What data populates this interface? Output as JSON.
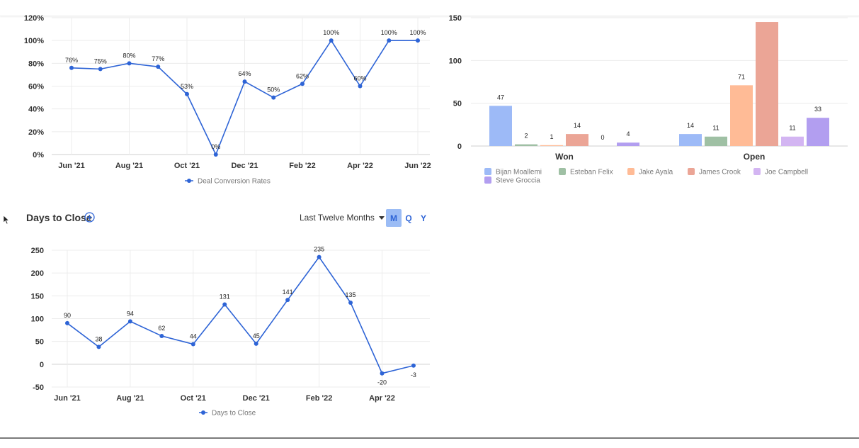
{
  "conversion_chart": {
    "legend": "Deal Conversion Rates",
    "color": "#2e64d6"
  },
  "days_section": {
    "title": "Days to Close",
    "range_label": "Last Twelve Months",
    "periods": [
      "M",
      "Q",
      "Y"
    ],
    "active_period": "M"
  },
  "days_chart": {
    "legend": "Days to Close",
    "color": "#2e64d6"
  },
  "chart_data": [
    {
      "type": "line",
      "ylim": [
        0,
        120
      ],
      "y_ticks": [
        "0%",
        "20%",
        "40%",
        "60%",
        "80%",
        "100%",
        "120%"
      ],
      "x_tick_labels": [
        "Jun '21",
        "Aug '21",
        "Oct '21",
        "Dec '21",
        "Feb '22",
        "Apr '22",
        "Jun '22"
      ],
      "x": [
        "Jun '21",
        "Jul '21",
        "Aug '21",
        "Sep '21",
        "Oct '21",
        "Nov '21",
        "Dec '21",
        "Jan '22",
        "Feb '22",
        "Mar '22",
        "Apr '22",
        "May '22",
        "Jun '22"
      ],
      "values": [
        76,
        75,
        80,
        77,
        53,
        0,
        64,
        50,
        62,
        100,
        60,
        100,
        100
      ],
      "labels": [
        "76%",
        "75%",
        "80%",
        "77%",
        "53%",
        "0%",
        "64%",
        "50%",
        "62%",
        "100%",
        "60%",
        "100%",
        "100%"
      ],
      "legend": [
        "Deal Conversion Rates"
      ],
      "grid": true
    },
    {
      "type": "bar",
      "categories": [
        "Won",
        "Open"
      ],
      "ylim": [
        0,
        150
      ],
      "y_ticks": [
        "0",
        "50",
        "100",
        "150"
      ],
      "series": [
        {
          "name": "Bijan Moallemi",
          "color": "#9dbaf7",
          "values": [
            47,
            14
          ]
        },
        {
          "name": "Esteban Felix",
          "color": "#9fc0a4",
          "values": [
            2,
            11
          ]
        },
        {
          "name": "Jake Ayala",
          "color": "#ffbb96",
          "values": [
            1,
            71
          ]
        },
        {
          "name": "James Crook",
          "color": "#eba596",
          "values": [
            14,
            145
          ]
        },
        {
          "name": "Joe Campbell",
          "color": "#d3b5f2",
          "values": [
            0,
            11
          ]
        },
        {
          "name": "Steve Groccia",
          "color": "#b29ef0",
          "values": [
            4,
            33
          ]
        }
      ],
      "bar_labels": [
        [
          "47",
          "2",
          "1",
          "14",
          "0",
          "4"
        ],
        [
          "14",
          "11",
          "71",
          "",
          "11",
          "33"
        ]
      ],
      "legend_position": "bottom-left"
    },
    {
      "type": "line",
      "ylim": [
        -50,
        250
      ],
      "y_ticks": [
        "-50",
        "0",
        "50",
        "100",
        "150",
        "200",
        "250"
      ],
      "x_tick_labels": [
        "Jun '21",
        "Aug '21",
        "Oct '21",
        "Dec '21",
        "Feb '22",
        "Apr '22"
      ],
      "x": [
        "Jun '21",
        "Jul '21",
        "Aug '21",
        "Sep '21",
        "Oct '21",
        "Nov '21",
        "Dec '21",
        "Jan '22",
        "Feb '22",
        "Mar '22",
        "Apr '22",
        "May '22"
      ],
      "values": [
        90,
        38,
        94,
        62,
        44,
        131,
        45,
        141,
        235,
        135,
        -20,
        -3
      ],
      "labels": [
        "90",
        "38",
        "94",
        "62",
        "44",
        "131",
        "45",
        "141",
        "235",
        "135",
        "-20",
        "-3"
      ],
      "legend": [
        "Days to Close"
      ],
      "grid": true
    }
  ]
}
